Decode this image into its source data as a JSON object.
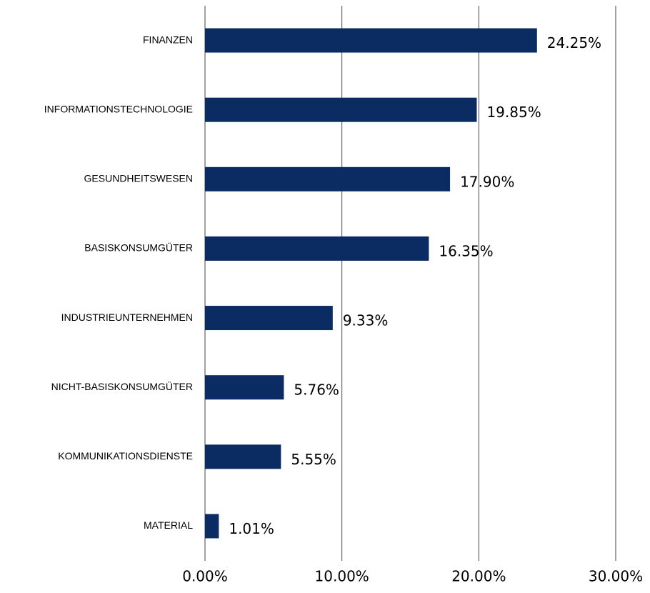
{
  "chart_data": {
    "type": "bar",
    "orientation": "horizontal",
    "categories": [
      "FINANZEN",
      "INFORMATIONSTECHNOLOGIE",
      "GESUNDHEITSWESEN",
      "BASISKONSUMGÜTER",
      "INDUSTRIEUNTERNEHMEN",
      "NICHT-BASISKONSUMGÜTER",
      "KOMMUNIKATIONSDIENSTE",
      "MATERIAL"
    ],
    "values": [
      24.25,
      19.85,
      17.9,
      16.35,
      9.33,
      5.76,
      5.55,
      1.01
    ],
    "value_labels": [
      "24.25%",
      "19.85%",
      "17.90%",
      "16.35%",
      "9.33%",
      "5.76%",
      "5.55%",
      "1.01%"
    ],
    "color": "#0b2c63",
    "xlim": [
      0,
      30
    ],
    "xticks": [
      {
        "value": 0,
        "label": "0.00%"
      },
      {
        "value": 10,
        "label": "10.00%"
      },
      {
        "value": 20,
        "label": "20.00%"
      },
      {
        "value": 30,
        "label": "30.00%"
      }
    ],
    "grid": true
  }
}
